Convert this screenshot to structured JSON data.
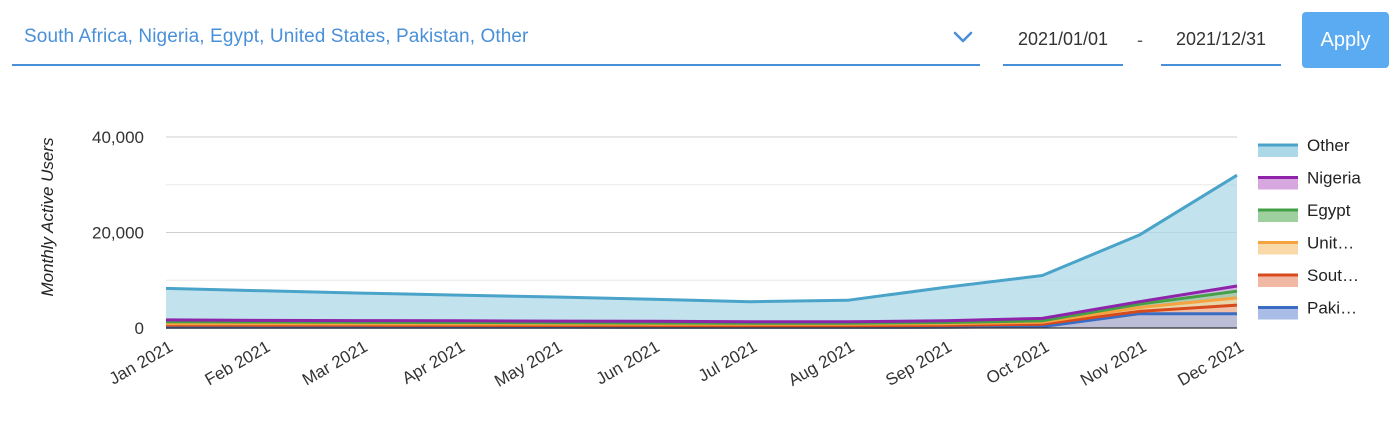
{
  "filters": {
    "countries_display": "South Africa,  Nigeria,  Egypt,  United States,  Pakistan,  Other",
    "date_start": "2021/01/01",
    "date_separator": "-",
    "date_end": "2021/12/31",
    "apply_label": "Apply",
    "accent_color": "#4a90d9",
    "button_color": "#5aabf2"
  },
  "chart_data": {
    "type": "area",
    "ylabel": "Monthly Active Users",
    "ylim": [
      0,
      40000
    ],
    "y_ticks": [
      0,
      20000,
      40000
    ],
    "y_tick_labels": [
      "0",
      "20,000",
      "40,000"
    ],
    "grid": true,
    "legend_position": "right",
    "categories": [
      "Jan 2021",
      "Feb 2021",
      "Mar 2021",
      "Apr 2021",
      "May 2021",
      "Jun 2021",
      "Jul 2021",
      "Aug 2021",
      "Sep 2021",
      "Oct 2021",
      "Nov 2021",
      "Dec 2021"
    ],
    "series": [
      {
        "name": "Other",
        "label": "Other",
        "color": "#4aa3c9",
        "fill": "#add8e8",
        "values": [
          8300,
          7800,
          7300,
          6900,
          6500,
          6000,
          5500,
          5800,
          8500,
          11000,
          19500,
          32000
        ]
      },
      {
        "name": "Nigeria",
        "label": "Nigeria",
        "color": "#8e24aa",
        "fill": "#d7a7e0",
        "values": [
          1700,
          1600,
          1550,
          1500,
          1450,
          1400,
          1300,
          1300,
          1500,
          2000,
          5500,
          8800
        ]
      },
      {
        "name": "Egypt",
        "label": "Egypt",
        "color": "#43a047",
        "fill": "#9ed09f",
        "values": [
          1300,
          1250,
          1200,
          1150,
          1100,
          1050,
          1000,
          1000,
          1150,
          1500,
          5000,
          7700
        ]
      },
      {
        "name": "United States",
        "label": "Unit…",
        "color": "#f4a340",
        "fill": "#f9d9a8",
        "values": [
          900,
          880,
          860,
          840,
          820,
          800,
          780,
          780,
          900,
          1200,
          4300,
          6300
        ]
      },
      {
        "name": "South Africa",
        "label": "Sout…",
        "color": "#d84a1b",
        "fill": "#f1b8a4",
        "values": [
          600,
          580,
          560,
          540,
          520,
          500,
          480,
          480,
          550,
          800,
          3500,
          4800
        ]
      },
      {
        "name": "Pakistan",
        "label": "Paki…",
        "color": "#3b6cc4",
        "fill": "#a9bde6",
        "values": [
          150,
          150,
          150,
          140,
          140,
          130,
          130,
          130,
          150,
          300,
          3000,
          3000
        ]
      }
    ]
  }
}
